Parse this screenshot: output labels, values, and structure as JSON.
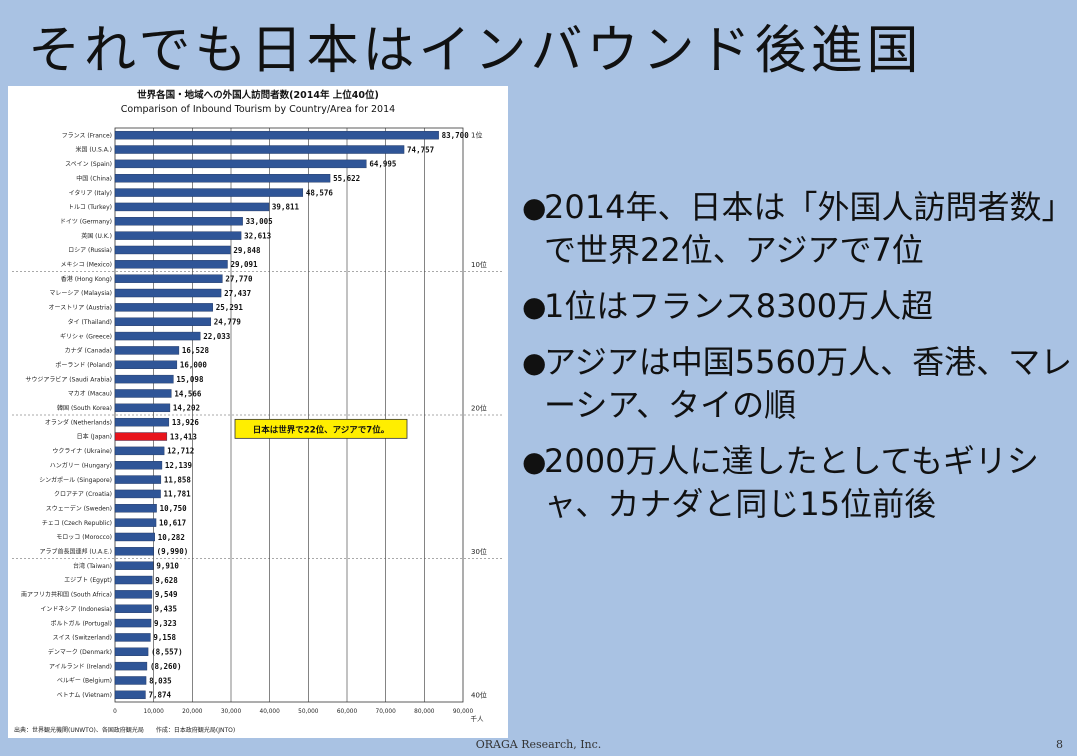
{
  "slide": {
    "title": "それでも日本はインバウンド後進国",
    "bullets": [
      "2014年、日本は「外国人訪問者数」で世界22位、アジアで7位",
      "1位はフランス8300万人超",
      "アジアは中国5560万人、香港、マレーシア、タイの順",
      "2000万人に達したとしてもギリシャ、カナダと同じ15位前後"
    ],
    "bullet_symbol": "●",
    "footer_org": "ORAGA Research, Inc.",
    "page_number": "8"
  },
  "chart_data": {
    "type": "bar",
    "orientation": "horizontal",
    "title": "世界各国・地域への外国人訪問者数(2014年 上位40位)",
    "subtitle": "Comparison of Inbound Tourism by Country/Area for 2014",
    "unit": "千人",
    "xlim": [
      0,
      90000
    ],
    "x_ticks": [
      "0",
      "10,000",
      "20,000",
      "30,000",
      "40,000",
      "50,000",
      "60,000",
      "70,000",
      "80,000",
      "90,000"
    ],
    "rank_markers": [
      {
        "rank": 1,
        "label": "1位"
      },
      {
        "rank": 10,
        "label": "10位"
      },
      {
        "rank": 20,
        "label": "20位"
      },
      {
        "rank": 30,
        "label": "30位"
      },
      {
        "rank": 40,
        "label": "40位"
      }
    ],
    "annotation": "日本は世界で22位、アジアで7位。",
    "source": "出典：世界観光機関(UNWTO)、各国政府観光局　　作成：日本政府観光局(JNTO)",
    "colors": {
      "bar": "#2f5597",
      "highlight": "#e8141c",
      "annotation_bg": "#ffee00"
    },
    "categories": [
      "フランス (France)",
      "米国 (U.S.A.)",
      "スペイン (Spain)",
      "中国 (China)",
      "イタリア (Italy)",
      "トルコ (Turkey)",
      "ドイツ (Germany)",
      "英国 (U.K.)",
      "ロシア (Russia)",
      "メキシコ (Mexico)",
      "香港 (Hong Kong)",
      "マレーシア (Malaysia)",
      "オーストリア (Austria)",
      "タイ (Thailand)",
      "ギリシャ (Greece)",
      "カナダ (Canada)",
      "ポーランド (Poland)",
      "サウジアラビア (Saudi Arabia)",
      "マカオ (Macau)",
      "韓国 (South Korea)",
      "オランダ (Netherlands)",
      "日本 (Japan)",
      "ウクライナ (Ukraine)",
      "ハンガリー (Hungary)",
      "シンガポール (Singapore)",
      "クロアチア (Croatia)",
      "スウェーデン (Sweden)",
      "チェコ (Czech Republic)",
      "モロッコ (Morocco)",
      "アラブ首長国連邦 (U.A.E.)",
      "台湾 (Taiwan)",
      "エジプト (Egypt)",
      "南アフリカ共和国 (South Africa)",
      "インドネシア (Indonesia)",
      "ポルトガル (Portugal)",
      "スイス (Switzerland)",
      "デンマーク (Denmark)",
      "アイルランド (Ireland)",
      "ベルギー (Belgium)",
      "ベトナム (Vietnam)"
    ],
    "values": [
      83700,
      74757,
      64995,
      55622,
      48576,
      39811,
      33005,
      32613,
      29848,
      29091,
      27770,
      27437,
      25291,
      24779,
      22033,
      16528,
      16000,
      15098,
      14566,
      14202,
      13926,
      13413,
      12712,
      12139,
      11858,
      11781,
      10750,
      10617,
      10282,
      9990,
      9910,
      9628,
      9549,
      9435,
      9323,
      9158,
      8557,
      8260,
      8035,
      7874
    ],
    "value_labels": [
      "83,700",
      "74,757",
      "64,995",
      "55,622",
      "48,576",
      "39,811",
      "33,005",
      "32,613",
      "29,848",
      "29,091",
      "27,770",
      "27,437",
      "25,291",
      "24,779",
      "22,033",
      "16,528",
      "16,000",
      "15,098",
      "14,566",
      "14,202",
      "13,926",
      "13,413",
      "12,712",
      "12,139",
      "11,858",
      "11,781",
      "10,750",
      "10,617",
      "10,282",
      "(9,990)",
      "9,910",
      "9,628",
      "9,549",
      "9,435",
      "9,323",
      "9,158",
      "(8,557)",
      "(8,260)",
      "8,035",
      "7,874"
    ],
    "highlight_index": 21
  }
}
